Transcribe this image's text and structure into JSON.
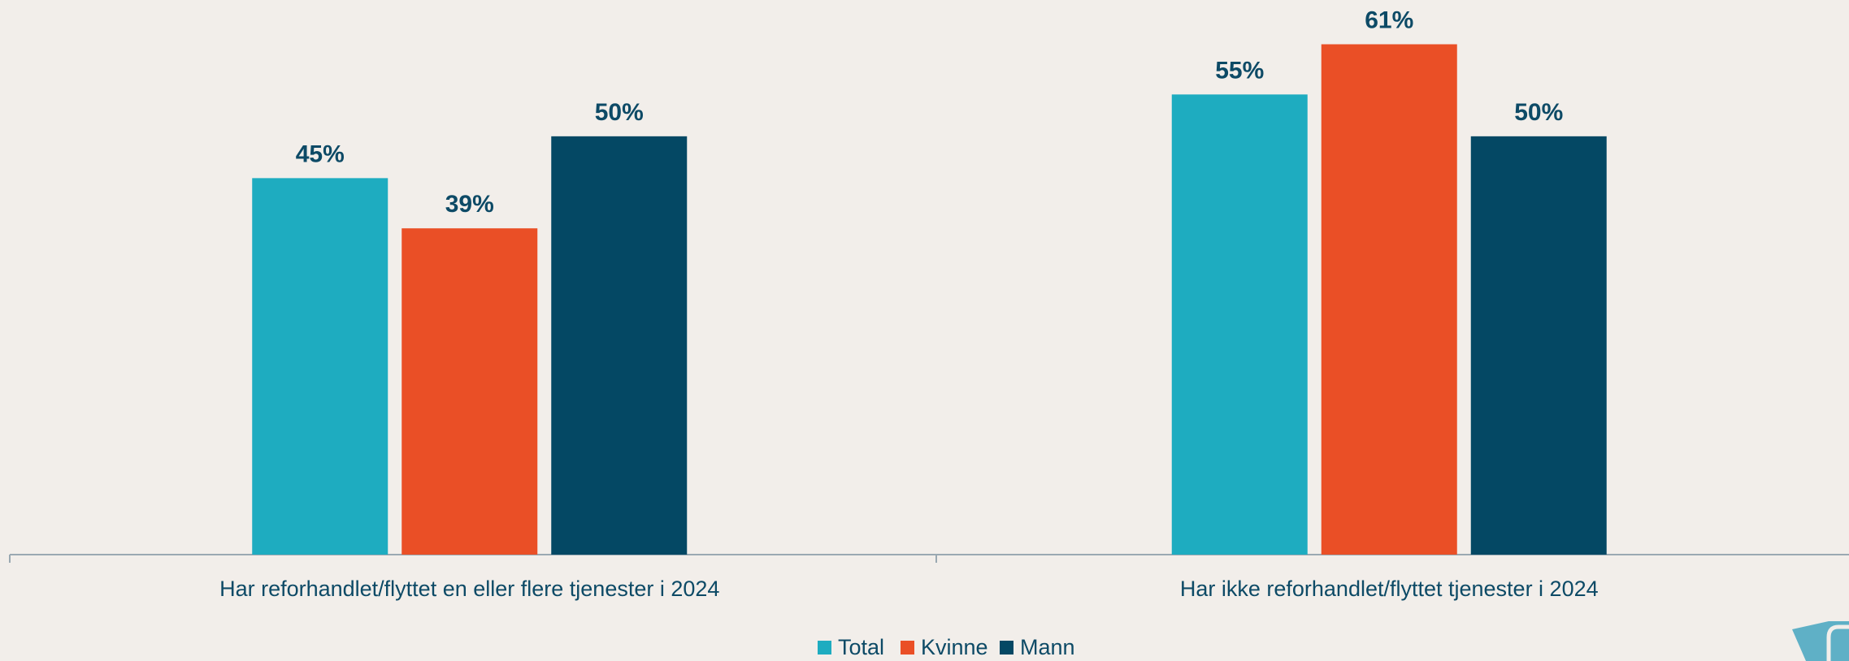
{
  "chart_data": {
    "type": "bar",
    "categories": [
      "Har reforhandlet/flyttet en eller flere tjenester i 2024",
      "Har ikke reforhandlet/flyttet tjenester i 2024"
    ],
    "series": [
      {
        "name": "Total",
        "color": "#1eacc0",
        "values": [
          45,
          55
        ],
        "value_labels": [
          "45%",
          "55%"
        ]
      },
      {
        "name": "Kvinne",
        "color": "#ea4f26",
        "values": [
          39,
          61
        ],
        "value_labels": [
          "39%",
          "61%"
        ]
      },
      {
        "name": "Mann",
        "color": "#044864",
        "values": [
          50,
          50
        ],
        "value_labels": [
          "50%",
          "50%"
        ]
      }
    ],
    "ylim": [
      0,
      66
    ],
    "legend": "bottom"
  }
}
